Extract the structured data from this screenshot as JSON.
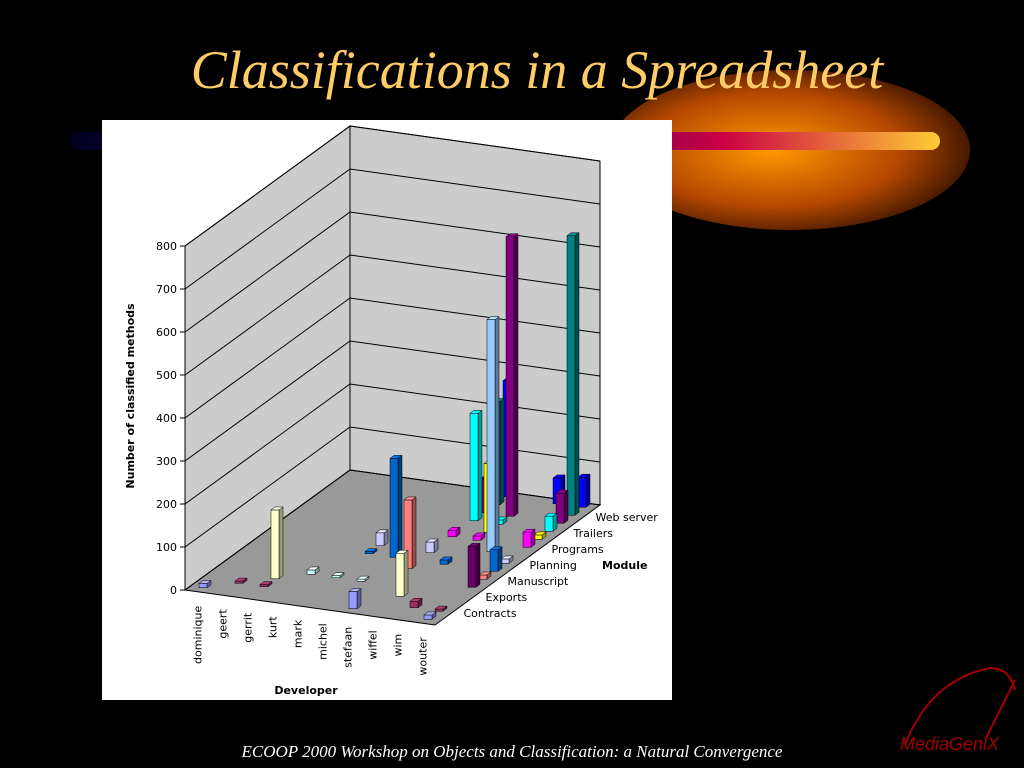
{
  "slide": {
    "title": "Classifications in a Spreadsheet",
    "footer": "ECOOP 2000 Workshop on Objects and Classification: a Natural Convergence",
    "logo": "MediaGeniX"
  },
  "chart_data": {
    "type": "bar3d",
    "y_label": "Number of classified methods",
    "x_label": "Developer",
    "z_label": "Module",
    "categories": [
      "dominique",
      "geert",
      "gerrit",
      "kurt",
      "mark",
      "michel",
      "stefaan",
      "wiffel",
      "wim",
      "wouter"
    ],
    "series": [
      {
        "name": null,
        "color": "#9999ff",
        "values": [
          10,
          0,
          0,
          0,
          0,
          0,
          40,
          0,
          0,
          10
        ]
      },
      {
        "name": "Contracts",
        "color": "#993366",
        "values": [
          0,
          5,
          5,
          0,
          0,
          0,
          0,
          0,
          15,
          5
        ]
      },
      {
        "name": null,
        "color": "#ffffcc",
        "values": [
          0,
          0,
          160,
          0,
          0,
          0,
          0,
          100,
          0,
          0
        ]
      },
      {
        "name": "Exports",
        "color": "#ccffff",
        "values": [
          0,
          0,
          0,
          10,
          5,
          5,
          0,
          0,
          0,
          0
        ]
      },
      {
        "name": null,
        "color": "#660066",
        "values": [
          0,
          0,
          0,
          0,
          0,
          0,
          0,
          0,
          0,
          95
        ]
      },
      {
        "name": "Manuscript",
        "color": "#ff8080",
        "values": [
          0,
          0,
          0,
          0,
          0,
          0,
          160,
          0,
          0,
          10
        ]
      },
      {
        "name": null,
        "color": "#0066cc",
        "values": [
          0,
          0,
          0,
          0,
          5,
          230,
          0,
          10,
          0,
          50
        ]
      },
      {
        "name": "Planning",
        "color": "#ccccff",
        "values": [
          0,
          0,
          0,
          0,
          30,
          0,
          25,
          0,
          0,
          10
        ]
      },
      {
        "name": null,
        "color": "#99ccff",
        "values": [
          0,
          0,
          0,
          0,
          0,
          0,
          0,
          0,
          540,
          0
        ]
      },
      {
        "name": "Programs",
        "color": "#ff00ff",
        "values": [
          0,
          0,
          0,
          0,
          0,
          0,
          15,
          10,
          0,
          35
        ]
      },
      {
        "name": null,
        "color": "#ffff00",
        "values": [
          0,
          0,
          0,
          0,
          0,
          0,
          0,
          160,
          0,
          10
        ]
      },
      {
        "name": "Trailers",
        "color": "#00ffff",
        "values": [
          0,
          0,
          0,
          0,
          0,
          0,
          250,
          10,
          0,
          35
        ]
      },
      {
        "name": null,
        "color": "#800080",
        "values": [
          0,
          0,
          0,
          0,
          0,
          0,
          80,
          650,
          0,
          70
        ]
      },
      {
        "name": "Web server",
        "color": "#008080",
        "values": [
          0,
          0,
          0,
          0,
          0,
          0,
          240,
          0,
          0,
          650
        ]
      },
      {
        "name": null,
        "color": "#0000ff",
        "values": [
          0,
          0,
          0,
          0,
          0,
          0,
          270,
          0,
          60,
          70
        ]
      }
    ],
    "ylim": [
      0,
      800
    ],
    "yticks": [
      0,
      100,
      200,
      300,
      400,
      500,
      600,
      700,
      800
    ],
    "grid": true
  }
}
